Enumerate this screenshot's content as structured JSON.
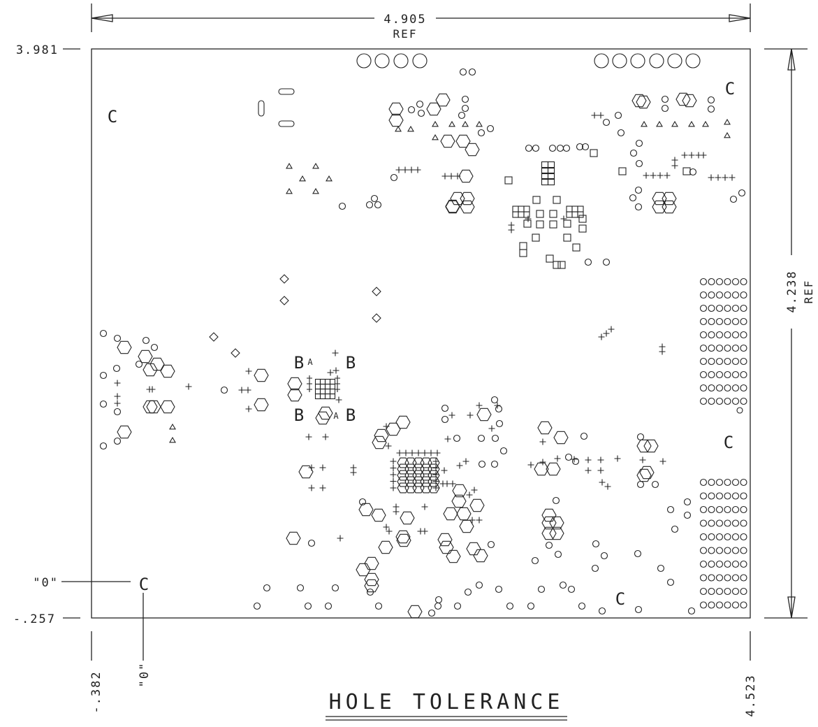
{
  "title": "HOLE TOLERANCE",
  "colors": {
    "line": "#222222",
    "background": "#ffffff"
  },
  "dimensions": {
    "width": {
      "value": "4.905",
      "note": "REF"
    },
    "height": {
      "value": "4.238",
      "note": "REF"
    },
    "top": "3.981",
    "bottom": "-.257",
    "left": "-.382",
    "right": "4.523",
    "origin_x": "\"0\"",
    "origin_y": "\"0\""
  },
  "markers": {
    "b": "B",
    "c": "C",
    "a": "A"
  }
}
